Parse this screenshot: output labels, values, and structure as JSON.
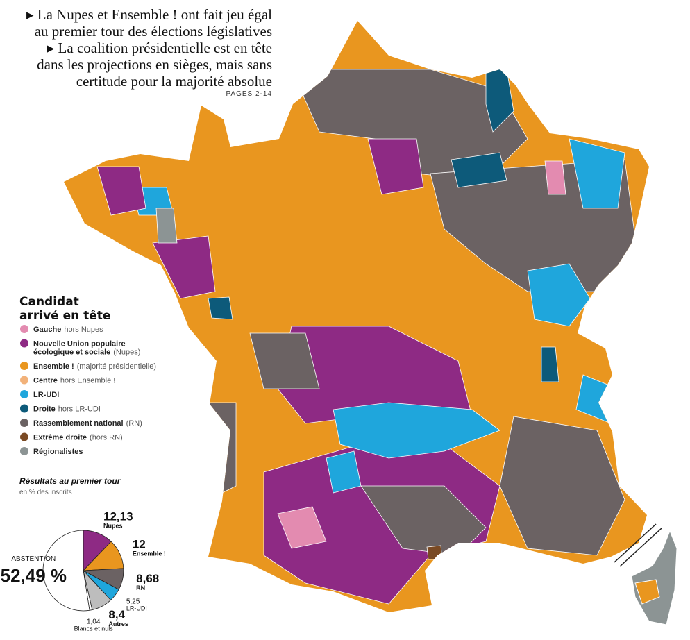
{
  "header": {
    "lines": [
      "▸ La Nupes et Ensemble ! ont fait jeu égal",
      "au premier tour des élections législatives",
      "▸ La coalition présidentielle est en tête",
      "dans les projections en sièges, mais sans",
      "certitude pour la majorité absolue"
    ],
    "pages": "PAGES 2-14"
  },
  "legend": {
    "title_lines": [
      "Candidat",
      "arrivé en tête"
    ],
    "items": [
      {
        "label": "Gauche",
        "note": "hors Nupes",
        "color": "#e38bb0"
      },
      {
        "label": "Nouvelle Union populaire",
        "label2": "écologique et sociale",
        "note": "(Nupes)",
        "color": "#8e2a84"
      },
      {
        "label": "Ensemble !",
        "note": "(majorité présidentielle)",
        "color": "#e9961f"
      },
      {
        "label": "Centre",
        "note": "hors Ensemble !",
        "color": "#f2b27a"
      },
      {
        "label": "LR-UDI",
        "color": "#1fa6dc"
      },
      {
        "label": "Droite",
        "note": "hors LR-UDI",
        "color": "#0d5a7a"
      },
      {
        "label": "Rassemblement national",
        "note": "(RN)",
        "color": "#6b6263"
      },
      {
        "label": "Extrême droite",
        "note": "(hors RN)",
        "color": "#7a4a24"
      },
      {
        "label": "Régionalistes",
        "color": "#8c9494"
      }
    ]
  },
  "chart_data": {
    "type": "pie",
    "title": "Résultats au premier tour",
    "subtitle": "en % des inscrits",
    "series": [
      {
        "name": "Nupes",
        "color": "#8e2a84",
        "values": [
          12.13
        ],
        "value_labels": [
          "12,13"
        ]
      },
      {
        "name": "Ensemble !",
        "color": "#e9961f",
        "values": [
          12
        ],
        "value_labels": [
          "12"
        ]
      },
      {
        "name": "RN",
        "color": "#6b6263",
        "values": [
          8.68
        ],
        "value_labels": [
          "8,68"
        ]
      },
      {
        "name": "LR-UDI",
        "color": "#1fa6dc",
        "values": [
          5.25
        ],
        "value_labels": [
          "5,25"
        ]
      },
      {
        "name": "Autres",
        "color": "#bdbdbd",
        "values": [
          8.4
        ],
        "value_labels": [
          "8,4"
        ]
      },
      {
        "name": "Blancs et nuls",
        "color": "#ffffff",
        "values": [
          1.04
        ],
        "value_labels": [
          "1,04"
        ]
      },
      {
        "name": "ABSTENTION",
        "color": "#ffffff",
        "values": [
          52.49
        ],
        "value_labels": [
          "52,49 %"
        ]
      }
    ]
  }
}
